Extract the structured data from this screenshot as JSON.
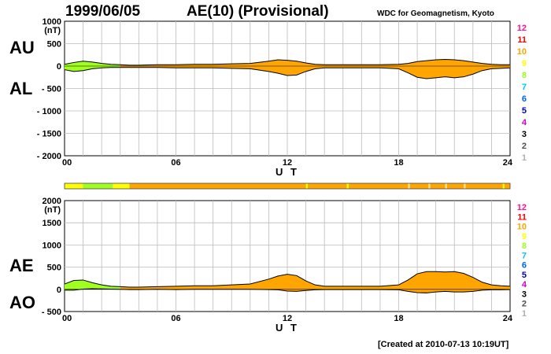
{
  "header": {
    "date": "1999/06/05",
    "title": "AE(10) (Provisional)",
    "org": "WDC for Geomagnetism, Kyoto",
    "created": "[Created at 2010-07-13 10:19UT]"
  },
  "labels": {
    "au": "AU",
    "al": "AL",
    "ae": "AE",
    "ao": "AO"
  },
  "station_legend": {
    "items": [
      "12",
      "11",
      "10",
      "9",
      "8",
      "7",
      "6",
      "5",
      "4",
      "3",
      "2",
      "1"
    ],
    "colors": [
      "#ff1493",
      "#ff0000",
      "#ffa500",
      "#ffff00",
      "#a0ff20",
      "#00c0ff",
      "#0060ff",
      "#0000c0",
      "#cc00cc",
      "#000000",
      "#505050",
      "#b0b0b0"
    ]
  },
  "chart_data": [
    {
      "type": "area",
      "name": "AU/AL",
      "xlabel": "U T",
      "unit": "(nT)",
      "xticks": [
        "00",
        "06",
        "12",
        "18",
        "24"
      ],
      "yticks": [
        "1000",
        "500",
        "0",
        "- 500",
        "- 1000",
        "- 1500",
        "- 2000"
      ],
      "ylim": [
        -2000,
        1000
      ],
      "xlim": [
        0,
        24
      ],
      "x": [
        0,
        0.5,
        1,
        1.5,
        2,
        2.5,
        3,
        3.5,
        4,
        5,
        6,
        7,
        8,
        9,
        10,
        11,
        11.5,
        12,
        12.5,
        13,
        13.5,
        14,
        15,
        16,
        17,
        18,
        18.5,
        19,
        19.5,
        20,
        20.5,
        21,
        21.5,
        22,
        22.5,
        23,
        23.5,
        24
      ],
      "au": [
        40,
        80,
        110,
        90,
        60,
        40,
        30,
        20,
        20,
        30,
        30,
        40,
        40,
        50,
        60,
        110,
        140,
        130,
        110,
        70,
        40,
        30,
        30,
        30,
        30,
        40,
        60,
        100,
        120,
        140,
        150,
        140,
        120,
        90,
        60,
        40,
        30,
        30
      ],
      "al": [
        -80,
        -120,
        -100,
        -60,
        -40,
        -30,
        -30,
        -30,
        -30,
        -30,
        -40,
        -40,
        -40,
        -50,
        -60,
        -120,
        -160,
        -210,
        -200,
        -120,
        -60,
        -40,
        -40,
        -40,
        -40,
        -60,
        -150,
        -250,
        -280,
        -260,
        -240,
        -260,
        -240,
        -180,
        -100,
        -60,
        -50,
        -40
      ]
    },
    {
      "type": "area",
      "name": "AE/AO",
      "xlabel": "U T",
      "unit": "(nT)",
      "xticks": [
        "00",
        "06",
        "12",
        "18",
        "24"
      ],
      "yticks": [
        "2000",
        "1500",
        "1000",
        "500",
        "0",
        "- 500"
      ],
      "ylim": [
        -500,
        2000
      ],
      "xlim": [
        0,
        24
      ],
      "x": [
        0,
        0.5,
        1,
        1.5,
        2,
        2.5,
        3,
        3.5,
        4,
        5,
        6,
        7,
        8,
        9,
        10,
        11,
        11.5,
        12,
        12.5,
        13,
        13.5,
        14,
        15,
        16,
        17,
        18,
        18.5,
        19,
        19.5,
        20,
        20.5,
        21,
        21.5,
        22,
        22.5,
        23,
        23.5,
        24
      ],
      "ae": [
        120,
        200,
        210,
        150,
        100,
        70,
        60,
        50,
        50,
        60,
        70,
        80,
        80,
        100,
        120,
        230,
        300,
        340,
        310,
        190,
        100,
        70,
        70,
        70,
        70,
        100,
        210,
        350,
        400,
        400,
        390,
        400,
        360,
        270,
        160,
        100,
        80,
        70
      ],
      "ao": [
        -20,
        -20,
        5,
        15,
        10,
        5,
        0,
        -5,
        -5,
        0,
        -5,
        0,
        0,
        0,
        0,
        -5,
        -10,
        -40,
        -45,
        -25,
        -10,
        -5,
        -5,
        -5,
        -5,
        -10,
        -45,
        -75,
        -80,
        -60,
        -45,
        -60,
        -60,
        -45,
        -20,
        -10,
        -10,
        -5
      ]
    }
  ],
  "station_bar": {
    "segments": [
      {
        "from": 0,
        "to": 1,
        "color": "#ffff00"
      },
      {
        "from": 1,
        "to": 2.6,
        "color": "#a0ff20"
      },
      {
        "from": 2.6,
        "to": 3.5,
        "color": "#ffff00"
      },
      {
        "from": 3.5,
        "to": 24,
        "color": "#ffa500"
      }
    ],
    "marks": [
      {
        "at": 13,
        "color": "#ffff00"
      },
      {
        "at": 15.2,
        "color": "#ffff00"
      },
      {
        "at": 18.5,
        "color": "#ffe080"
      },
      {
        "at": 19.6,
        "color": "#ffe080"
      },
      {
        "at": 20.5,
        "color": "#ffe080"
      },
      {
        "at": 21.5,
        "color": "#ffe080"
      },
      {
        "at": 23.6,
        "color": "#ffff00"
      }
    ]
  },
  "fill_color": "#ffa500",
  "early_fill_color": "#a0ff20"
}
